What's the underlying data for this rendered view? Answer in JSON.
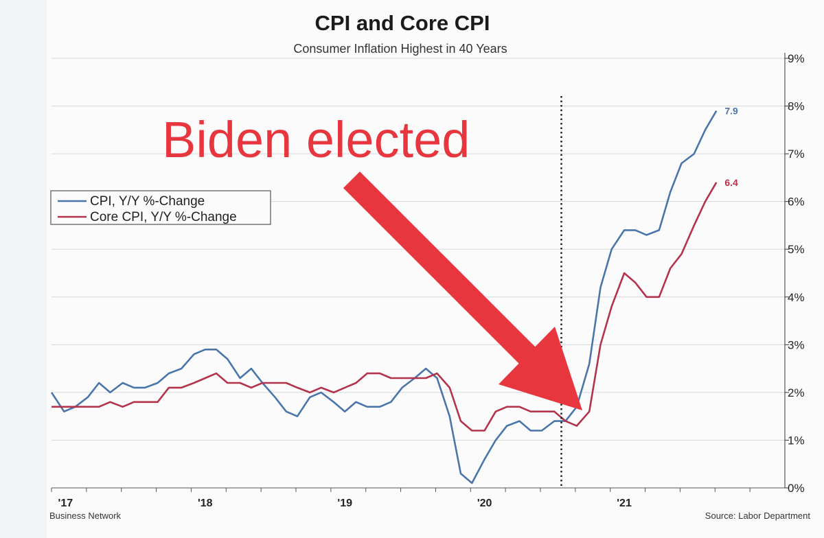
{
  "chart_data": {
    "type": "line",
    "title": "CPI and Core CPI",
    "subtitle": "Consumer Inflation Highest in 40 Years",
    "y_ticks": [
      "0%",
      "1%",
      "2%",
      "3%",
      "4%",
      "5%",
      "6%",
      "7%",
      "8%",
      "9%"
    ],
    "ylim": [
      0,
      9
    ],
    "xlim": [
      2017.0,
      2022.25
    ],
    "x_ticks": [
      {
        "label": "'17",
        "value": 2017.1
      },
      {
        "label": "'18",
        "value": 2018.1
      },
      {
        "label": "'19",
        "value": 2019.1
      },
      {
        "label": "'20",
        "value": 2020.1
      },
      {
        "label": "'21",
        "value": 2021.1
      }
    ],
    "grid": true,
    "legend_placement": "left",
    "series": [
      {
        "name": "CPI, Y/Y %-Change",
        "color": "#4a75a8",
        "end_label": "7.9",
        "values": [
          [
            2017.0,
            2.0
          ],
          [
            2017.09,
            1.6
          ],
          [
            2017.17,
            1.7
          ],
          [
            2017.26,
            1.9
          ],
          [
            2017.34,
            2.2
          ],
          [
            2017.42,
            2.0
          ],
          [
            2017.51,
            2.2
          ],
          [
            2017.59,
            2.1
          ],
          [
            2017.67,
            2.1
          ],
          [
            2017.76,
            2.2
          ],
          [
            2017.84,
            2.4
          ],
          [
            2017.93,
            2.5
          ],
          [
            2018.02,
            2.8
          ],
          [
            2018.1,
            2.9
          ],
          [
            2018.18,
            2.9
          ],
          [
            2018.26,
            2.7
          ],
          [
            2018.35,
            2.3
          ],
          [
            2018.43,
            2.5
          ],
          [
            2018.51,
            2.2
          ],
          [
            2018.6,
            1.9
          ],
          [
            2018.68,
            1.6
          ],
          [
            2018.76,
            1.5
          ],
          [
            2018.85,
            1.9
          ],
          [
            2018.93,
            2.0
          ],
          [
            2019.02,
            1.8
          ],
          [
            2019.1,
            1.6
          ],
          [
            2019.18,
            1.8
          ],
          [
            2019.26,
            1.7
          ],
          [
            2019.35,
            1.7
          ],
          [
            2019.43,
            1.8
          ],
          [
            2019.51,
            2.1
          ],
          [
            2019.6,
            2.3
          ],
          [
            2019.68,
            2.5
          ],
          [
            2019.76,
            2.3
          ],
          [
            2019.85,
            1.5
          ],
          [
            2019.93,
            0.3
          ],
          [
            2020.01,
            0.1
          ],
          [
            2020.1,
            0.6
          ],
          [
            2020.18,
            1.0
          ],
          [
            2020.26,
            1.3
          ],
          [
            2020.35,
            1.4
          ],
          [
            2020.43,
            1.2
          ],
          [
            2020.51,
            1.2
          ],
          [
            2020.6,
            1.4
          ],
          [
            2020.68,
            1.4
          ],
          [
            2020.76,
            1.7
          ],
          [
            2020.85,
            2.6
          ],
          [
            2020.93,
            4.2
          ],
          [
            2021.01,
            5.0
          ],
          [
            2021.1,
            5.4
          ],
          [
            2021.18,
            5.4
          ],
          [
            2021.26,
            5.3
          ],
          [
            2021.35,
            5.4
          ],
          [
            2021.43,
            6.2
          ],
          [
            2021.51,
            6.8
          ],
          [
            2021.6,
            7.0
          ],
          [
            2021.68,
            7.5
          ],
          [
            2021.76,
            7.9
          ]
        ]
      },
      {
        "name": "Core CPI, Y/Y %-Change",
        "color": "#b3334a",
        "end_label": "6.4",
        "values": [
          [
            2017.0,
            1.7
          ],
          [
            2017.09,
            1.7
          ],
          [
            2017.17,
            1.7
          ],
          [
            2017.26,
            1.7
          ],
          [
            2017.34,
            1.7
          ],
          [
            2017.42,
            1.8
          ],
          [
            2017.51,
            1.7
          ],
          [
            2017.59,
            1.8
          ],
          [
            2017.67,
            1.8
          ],
          [
            2017.76,
            1.8
          ],
          [
            2017.84,
            2.1
          ],
          [
            2017.93,
            2.1
          ],
          [
            2018.02,
            2.2
          ],
          [
            2018.1,
            2.3
          ],
          [
            2018.18,
            2.4
          ],
          [
            2018.26,
            2.2
          ],
          [
            2018.35,
            2.2
          ],
          [
            2018.43,
            2.1
          ],
          [
            2018.51,
            2.2
          ],
          [
            2018.6,
            2.2
          ],
          [
            2018.68,
            2.2
          ],
          [
            2018.76,
            2.1
          ],
          [
            2018.85,
            2.0
          ],
          [
            2018.93,
            2.1
          ],
          [
            2019.02,
            2.0
          ],
          [
            2019.1,
            2.1
          ],
          [
            2019.18,
            2.2
          ],
          [
            2019.26,
            2.4
          ],
          [
            2019.35,
            2.4
          ],
          [
            2019.43,
            2.3
          ],
          [
            2019.51,
            2.3
          ],
          [
            2019.6,
            2.3
          ],
          [
            2019.68,
            2.3
          ],
          [
            2019.76,
            2.4
          ],
          [
            2019.85,
            2.1
          ],
          [
            2019.93,
            1.4
          ],
          [
            2020.01,
            1.2
          ],
          [
            2020.1,
            1.2
          ],
          [
            2020.18,
            1.6
          ],
          [
            2020.26,
            1.7
          ],
          [
            2020.35,
            1.7
          ],
          [
            2020.43,
            1.6
          ],
          [
            2020.51,
            1.6
          ],
          [
            2020.6,
            1.6
          ],
          [
            2020.68,
            1.4
          ],
          [
            2020.76,
            1.3
          ],
          [
            2020.85,
            1.6
          ],
          [
            2020.93,
            3.0
          ],
          [
            2021.01,
            3.8
          ],
          [
            2021.1,
            4.5
          ],
          [
            2021.18,
            4.3
          ],
          [
            2021.26,
            4.0
          ],
          [
            2021.35,
            4.0
          ],
          [
            2021.43,
            4.6
          ],
          [
            2021.51,
            4.9
          ],
          [
            2021.6,
            5.5
          ],
          [
            2021.68,
            6.0
          ],
          [
            2021.76,
            6.4
          ]
        ]
      }
    ],
    "vertical_marker_x": 2020.65,
    "annotation": {
      "text": "Biden elected",
      "color": "#e8363f"
    },
    "source": "Source: Labor Department",
    "credit": "Business Network"
  }
}
